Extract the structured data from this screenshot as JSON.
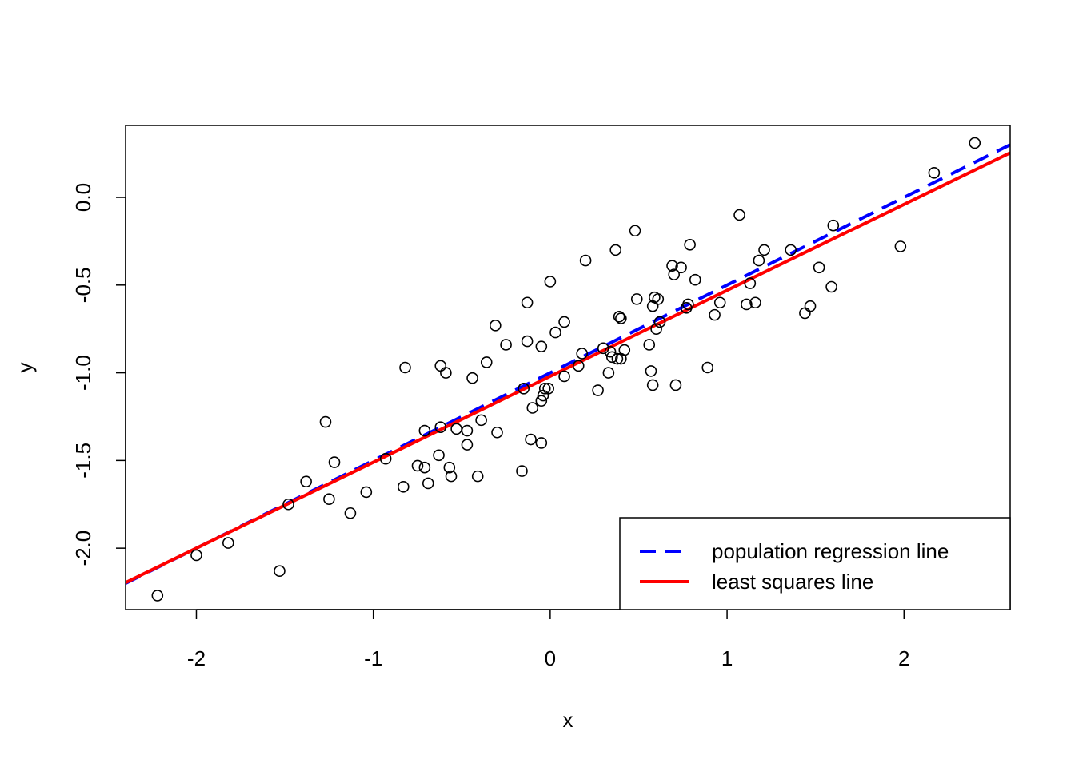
{
  "chart_data": {
    "type": "scatter",
    "title": "",
    "xlabel": "x",
    "ylabel": "y",
    "xlim": [
      -2.4,
      2.6
    ],
    "ylim": [
      -2.35,
      0.41
    ],
    "x_ticks": [
      -2,
      -1,
      0,
      1,
      2
    ],
    "x_tick_labels": [
      "-2",
      "-1",
      "0",
      "1",
      "2"
    ],
    "y_ticks": [
      -2.0,
      -1.5,
      -1.0,
      -0.5,
      0.0
    ],
    "y_tick_labels": [
      "-2.0",
      "-1.5",
      "-1.0",
      "-0.5",
      "0.0"
    ],
    "grid": false,
    "legend_position": "bottom-right",
    "points": [
      {
        "x": -2.22,
        "y": -2.27
      },
      {
        "x": -2.0,
        "y": -2.04
      },
      {
        "x": -1.82,
        "y": -1.97
      },
      {
        "x": -1.53,
        "y": -2.13
      },
      {
        "x": -1.48,
        "y": -1.75
      },
      {
        "x": -1.38,
        "y": -1.62
      },
      {
        "x": -1.27,
        "y": -1.28
      },
      {
        "x": -1.25,
        "y": -1.72
      },
      {
        "x": -1.22,
        "y": -1.51
      },
      {
        "x": -1.13,
        "y": -1.8
      },
      {
        "x": -1.04,
        "y": -1.68
      },
      {
        "x": -0.93,
        "y": -1.49
      },
      {
        "x": -0.83,
        "y": -1.65
      },
      {
        "x": -0.82,
        "y": -0.97
      },
      {
        "x": -0.75,
        "y": -1.53
      },
      {
        "x": -0.71,
        "y": -1.33
      },
      {
        "x": -0.71,
        "y": -1.54
      },
      {
        "x": -0.69,
        "y": -1.63
      },
      {
        "x": -0.63,
        "y": -1.47
      },
      {
        "x": -0.62,
        "y": -1.31
      },
      {
        "x": -0.62,
        "y": -0.96
      },
      {
        "x": -0.59,
        "y": -1.0
      },
      {
        "x": -0.57,
        "y": -1.54
      },
      {
        "x": -0.56,
        "y": -1.59
      },
      {
        "x": -0.53,
        "y": -1.32
      },
      {
        "x": -0.47,
        "y": -1.33
      },
      {
        "x": -0.47,
        "y": -1.41
      },
      {
        "x": -0.44,
        "y": -1.03
      },
      {
        "x": -0.41,
        "y": -1.59
      },
      {
        "x": -0.39,
        "y": -1.27
      },
      {
        "x": -0.36,
        "y": -0.94
      },
      {
        "x": -0.31,
        "y": -0.73
      },
      {
        "x": -0.3,
        "y": -1.34
      },
      {
        "x": -0.25,
        "y": -0.84
      },
      {
        "x": -0.16,
        "y": -1.56
      },
      {
        "x": -0.15,
        "y": -1.09
      },
      {
        "x": -0.13,
        "y": -0.6
      },
      {
        "x": -0.13,
        "y": -0.82
      },
      {
        "x": -0.11,
        "y": -1.38
      },
      {
        "x": -0.1,
        "y": -1.2
      },
      {
        "x": -0.05,
        "y": -1.4
      },
      {
        "x": -0.05,
        "y": -1.16
      },
      {
        "x": -0.05,
        "y": -0.85
      },
      {
        "x": -0.04,
        "y": -1.13
      },
      {
        "x": -0.03,
        "y": -1.09
      },
      {
        "x": -0.01,
        "y": -1.09
      },
      {
        "x": 0.0,
        "y": -0.48
      },
      {
        "x": 0.03,
        "y": -0.77
      },
      {
        "x": 0.08,
        "y": -1.02
      },
      {
        "x": 0.08,
        "y": -0.71
      },
      {
        "x": 0.16,
        "y": -0.96
      },
      {
        "x": 0.18,
        "y": -0.89
      },
      {
        "x": 0.2,
        "y": -0.36
      },
      {
        "x": 0.27,
        "y": -1.1
      },
      {
        "x": 0.3,
        "y": -0.86
      },
      {
        "x": 0.33,
        "y": -1.0
      },
      {
        "x": 0.34,
        "y": -0.88
      },
      {
        "x": 0.35,
        "y": -0.91
      },
      {
        "x": 0.37,
        "y": -0.3
      },
      {
        "x": 0.38,
        "y": -0.92
      },
      {
        "x": 0.39,
        "y": -0.68
      },
      {
        "x": 0.4,
        "y": -0.69
      },
      {
        "x": 0.4,
        "y": -0.92
      },
      {
        "x": 0.42,
        "y": -0.87
      },
      {
        "x": 0.48,
        "y": -0.19
      },
      {
        "x": 0.49,
        "y": -0.58
      },
      {
        "x": 0.56,
        "y": -0.84
      },
      {
        "x": 0.57,
        "y": -0.99
      },
      {
        "x": 0.58,
        "y": -1.07
      },
      {
        "x": 0.58,
        "y": -0.62
      },
      {
        "x": 0.59,
        "y": -0.57
      },
      {
        "x": 0.6,
        "y": -0.75
      },
      {
        "x": 0.61,
        "y": -0.58
      },
      {
        "x": 0.62,
        "y": -0.71
      },
      {
        "x": 0.69,
        "y": -0.39
      },
      {
        "x": 0.7,
        "y": -0.44
      },
      {
        "x": 0.71,
        "y": -1.07
      },
      {
        "x": 0.74,
        "y": -0.4
      },
      {
        "x": 0.77,
        "y": -0.63
      },
      {
        "x": 0.78,
        "y": -0.61
      },
      {
        "x": 0.79,
        "y": -0.27
      },
      {
        "x": 0.82,
        "y": -0.47
      },
      {
        "x": 0.89,
        "y": -0.97
      },
      {
        "x": 0.93,
        "y": -0.67
      },
      {
        "x": 0.96,
        "y": -0.6
      },
      {
        "x": 1.07,
        "y": -0.1
      },
      {
        "x": 1.11,
        "y": -0.61
      },
      {
        "x": 1.13,
        "y": -0.49
      },
      {
        "x": 1.16,
        "y": -0.6
      },
      {
        "x": 1.18,
        "y": -0.36
      },
      {
        "x": 1.21,
        "y": -0.3
      },
      {
        "x": 1.36,
        "y": -0.3
      },
      {
        "x": 1.44,
        "y": -0.66
      },
      {
        "x": 1.47,
        "y": -0.62
      },
      {
        "x": 1.52,
        "y": -0.4
      },
      {
        "x": 1.59,
        "y": -0.51
      },
      {
        "x": 1.6,
        "y": -0.16
      },
      {
        "x": 1.98,
        "y": -0.28
      },
      {
        "x": 2.17,
        "y": 0.14
      },
      {
        "x": 2.4,
        "y": 0.31
      }
    ],
    "lines": [
      {
        "name": "population regression line",
        "intercept": -1.0,
        "slope": 0.5,
        "color": "#0000ff",
        "dash": "dashed"
      },
      {
        "name": "least squares line",
        "intercept": -1.02,
        "slope": 0.49,
        "color": "#ff0000",
        "dash": "solid"
      }
    ]
  }
}
